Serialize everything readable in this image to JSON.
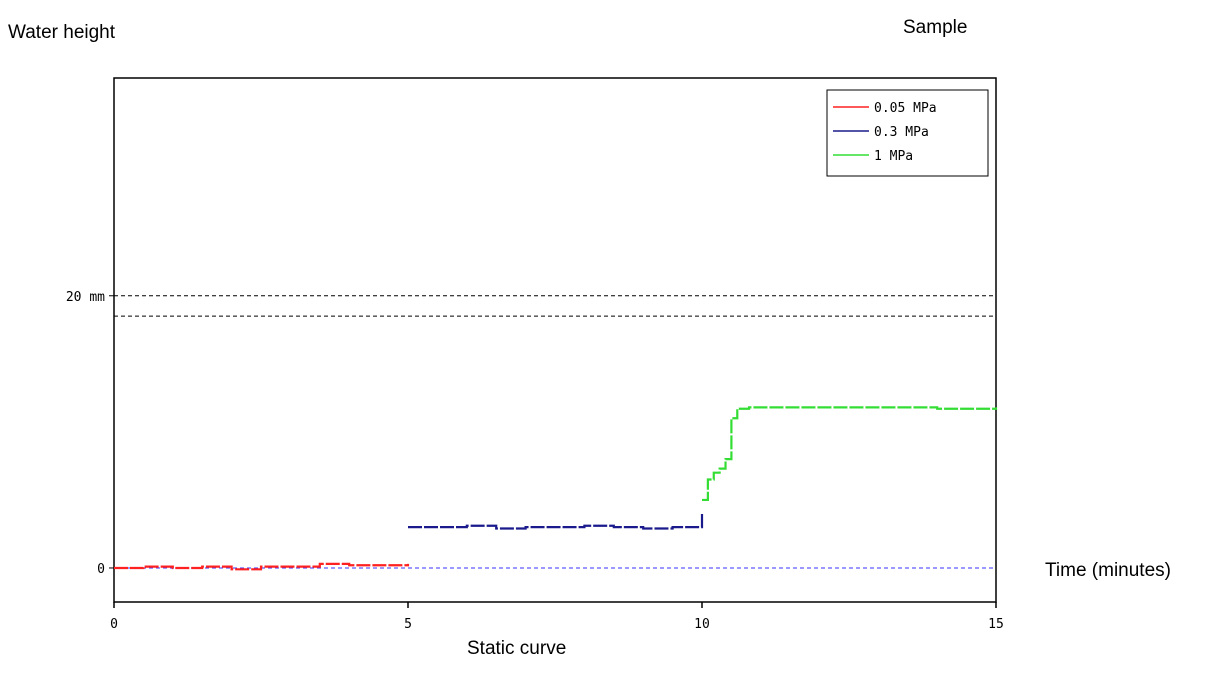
{
  "ylabel": "Water height",
  "corner_label": "Sample",
  "xlabel": "Time (minutes)",
  "caption": "Static curve",
  "chart_data": {
    "type": "line",
    "title": "",
    "xlabel": "Time (minutes)",
    "ylabel": "Water height",
    "xlim": [
      0,
      15
    ],
    "ylim": [
      -2.5,
      36
    ],
    "x_ticks": [
      {
        "value": 0,
        "label": "0"
      },
      {
        "value": 5,
        "label": "5"
      },
      {
        "value": 10,
        "label": "10"
      },
      {
        "value": 15,
        "label": "15"
      }
    ],
    "y_ticks": [
      {
        "value": 0,
        "label": "0"
      },
      {
        "value": 20,
        "label": "20 mm"
      }
    ],
    "reference_lines": [
      {
        "y": 0,
        "color": "#3333ff",
        "dash": "dashed"
      },
      {
        "y": 20,
        "color": "#000000",
        "dash": "dashed"
      },
      {
        "y": 18.5,
        "color": "#000000",
        "dash": "dashed"
      }
    ],
    "legend": {
      "position": "top-right"
    },
    "grid": false,
    "series": [
      {
        "name": "0.05 MPa",
        "color": "#ff2020",
        "x": [
          0,
          0.5,
          1,
          1.5,
          2,
          2.5,
          3,
          3.5,
          4,
          4.5,
          5
        ],
        "y": [
          0,
          0.1,
          0,
          0.1,
          -0.1,
          0.1,
          0.1,
          0.3,
          0.2,
          0.2,
          0.3
        ]
      },
      {
        "name": "0.3 MPa",
        "color": "#1a1a8c",
        "x": [
          5,
          5.5,
          6,
          6.5,
          7,
          7.5,
          8,
          8.5,
          9,
          9.5,
          9.95,
          10
        ],
        "y": [
          3,
          3,
          3.1,
          2.9,
          3,
          3,
          3.1,
          3,
          2.9,
          3,
          3,
          4
        ]
      },
      {
        "name": "1 MPa",
        "color": "#33dd33",
        "x": [
          10,
          10.1,
          10.2,
          10.3,
          10.4,
          10.5,
          10.6,
          10.8,
          11,
          12,
          13,
          14,
          15
        ],
        "y": [
          5,
          6.5,
          7,
          7.3,
          8,
          11,
          11.7,
          11.8,
          11.8,
          11.8,
          11.8,
          11.7,
          11.8
        ]
      }
    ]
  }
}
